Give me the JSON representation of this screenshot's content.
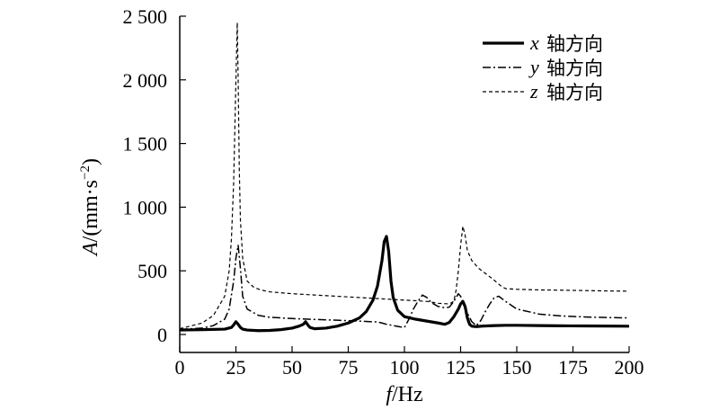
{
  "chart_data": {
    "type": "line",
    "title": "",
    "xlabel": {
      "var": "f",
      "unit": "/Hz"
    },
    "ylabel": {
      "var": "A",
      "unit": "/(mm·s",
      "sup": "−2",
      "close": ")"
    },
    "xlim": [
      0,
      200
    ],
    "ylim": [
      0,
      2500
    ],
    "xticks": [
      "0",
      "25",
      "50",
      "75",
      "100",
      "125",
      "150",
      "175",
      "200"
    ],
    "yticks": [
      {
        "value": 0,
        "label": "0"
      },
      {
        "value": 500,
        "label": "500"
      },
      {
        "value": 1000,
        "label": "1 000"
      },
      {
        "value": 1500,
        "label": "1 500"
      },
      {
        "value": 2000,
        "label": "2 000"
      },
      {
        "value": 2500,
        "label": "2 500"
      }
    ],
    "grid": false,
    "legend_position": "top-right",
    "series": [
      {
        "name": "x 轴方向",
        "legend_var": "x",
        "legend_text": "轴方向",
        "style": "solid-thick",
        "color": "#000000",
        "x": [
          0,
          10,
          20,
          23,
          24,
          25,
          26,
          27,
          28,
          30,
          35,
          40,
          45,
          50,
          53,
          55,
          56,
          57,
          58,
          60,
          65,
          70,
          75,
          80,
          83,
          86,
          88,
          90,
          91,
          92,
          93,
          94,
          95,
          97,
          100,
          105,
          110,
          115,
          118,
          120,
          122,
          124,
          125,
          126,
          127,
          128,
          129,
          130,
          132,
          135,
          140,
          145,
          150,
          160,
          170,
          180,
          190,
          200
        ],
        "y": [
          35,
          38,
          42,
          55,
          75,
          100,
          80,
          55,
          42,
          35,
          30,
          32,
          38,
          50,
          65,
          80,
          100,
          75,
          55,
          45,
          50,
          65,
          90,
          130,
          180,
          270,
          380,
          580,
          730,
          770,
          650,
          420,
          290,
          190,
          140,
          120,
          105,
          90,
          80,
          95,
          140,
          200,
          240,
          260,
          220,
          130,
          80,
          65,
          62,
          66,
          70,
          72,
          72,
          70,
          68,
          67,
          66,
          65
        ]
      },
      {
        "name": "y 轴方向",
        "legend_var": "y",
        "legend_text": "轴方向",
        "style": "dash-dot",
        "color": "#000000",
        "x": [
          0,
          10,
          15,
          20,
          22,
          24,
          25,
          26,
          27,
          28,
          30,
          35,
          40,
          50,
          60,
          70,
          80,
          88,
          90,
          92,
          95,
          98,
          100,
          102,
          104,
          106,
          108,
          110,
          112,
          115,
          118,
          120,
          122,
          124,
          125,
          127,
          130,
          132,
          134,
          136,
          138,
          140,
          142,
          145,
          150,
          160,
          170,
          180,
          190,
          200
        ],
        "y": [
          40,
          50,
          70,
          120,
          200,
          420,
          600,
          700,
          520,
          300,
          200,
          150,
          135,
          125,
          118,
          112,
          105,
          98,
          90,
          80,
          70,
          60,
          55,
          120,
          200,
          260,
          310,
          290,
          250,
          220,
          210,
          215,
          260,
          320,
          300,
          200,
          100,
          70,
          110,
          180,
          240,
          290,
          300,
          260,
          200,
          160,
          145,
          138,
          133,
          130
        ]
      },
      {
        "name": "z 轴方向",
        "legend_var": "z",
        "legend_text": "轴方向",
        "style": "dashed",
        "color": "#000000",
        "x": [
          0,
          10,
          15,
          20,
          22,
          23,
          24,
          25,
          25.6,
          26,
          26.5,
          27,
          28,
          30,
          33,
          36,
          40,
          50,
          60,
          70,
          80,
          90,
          100,
          110,
          115,
          120,
          122,
          123,
          124,
          125,
          126,
          127,
          128,
          130,
          133,
          136,
          139,
          141,
          143,
          145,
          150,
          160,
          170,
          180,
          190,
          200
        ],
        "y": [
          45,
          90,
          150,
          300,
          500,
          750,
          1200,
          2000,
          2450,
          2000,
          1300,
          900,
          600,
          420,
          370,
          350,
          335,
          320,
          310,
          300,
          290,
          280,
          270,
          260,
          245,
          240,
          260,
          350,
          500,
          700,
          850,
          780,
          660,
          580,
          520,
          480,
          440,
          410,
          380,
          360,
          355,
          350,
          348,
          345,
          342,
          340
        ]
      }
    ]
  }
}
